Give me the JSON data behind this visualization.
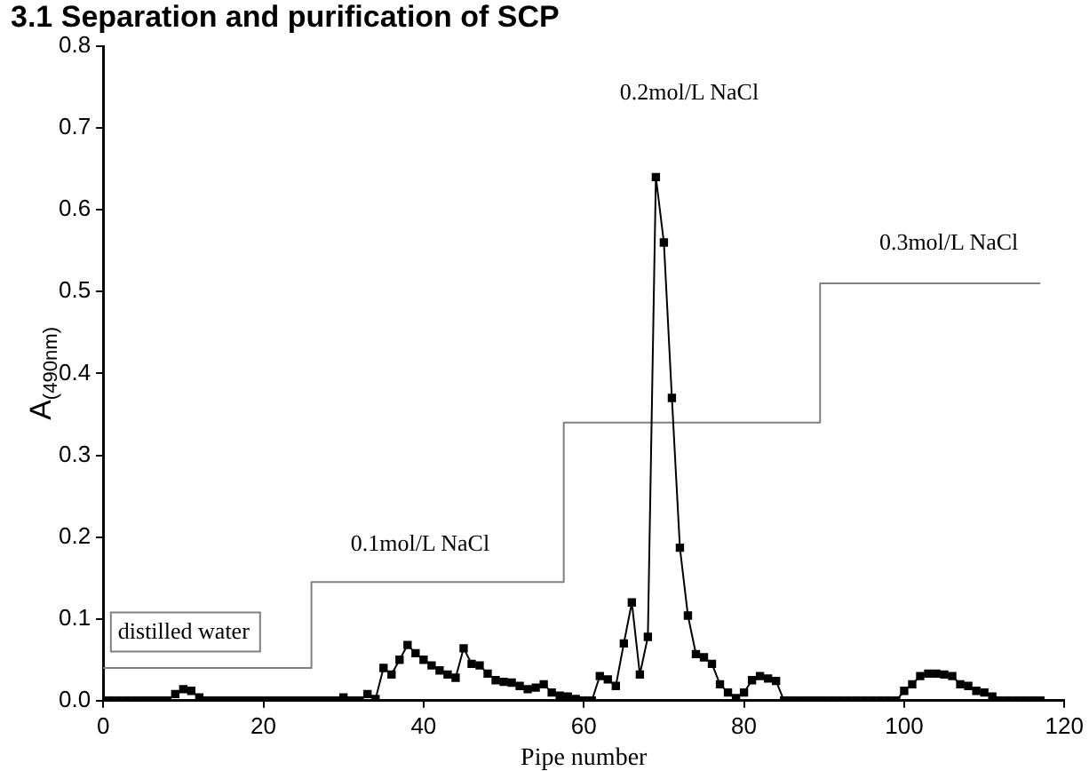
{
  "chart_data": {
    "type": "line",
    "title": "3.1 Separation and purification of SCP",
    "xlabel": "Pipe number",
    "ylabel": "A$_{(490nm)}$",
    "xlim": [
      0,
      120
    ],
    "xticks": [
      0,
      20,
      40,
      60,
      80,
      100,
      120
    ],
    "ylim": [
      0,
      0.8
    ],
    "yticks": [
      {
        "value": 0,
        "label": "0.0"
      },
      0.1,
      0.2,
      0.3,
      0.4,
      0.5,
      0.6,
      0.7,
      0.8
    ],
    "grid": false,
    "legend": false,
    "marker": "square",
    "line_style": "solid",
    "series": [
      {
        "color": "#000000",
        "x": [
          0,
          1,
          2,
          3,
          4,
          5,
          6,
          7,
          8,
          9,
          10,
          11,
          12,
          13,
          14,
          15,
          16,
          17,
          18,
          19,
          20,
          21,
          22,
          23,
          24,
          25,
          26,
          27,
          28,
          29,
          30,
          31,
          32,
          33,
          34,
          35,
          36,
          37,
          38,
          39,
          40,
          41,
          42,
          43,
          44,
          45,
          46,
          47,
          48,
          49,
          50,
          51,
          52,
          53,
          54,
          55,
          56,
          57,
          58,
          59,
          60,
          61,
          62,
          63,
          64,
          65,
          66,
          67,
          68,
          69,
          70,
          71,
          72,
          73,
          74,
          75,
          76,
          77,
          78,
          79,
          80,
          81,
          82,
          83,
          84,
          85,
          86,
          87,
          88,
          89,
          90,
          91,
          92,
          93,
          94,
          95,
          96,
          97,
          98,
          99,
          100,
          101,
          102,
          103,
          104,
          105,
          106,
          107,
          108,
          109,
          110,
          111,
          112,
          113,
          114,
          115,
          116,
          117
        ],
        "values": [
          0,
          0,
          0,
          0,
          0,
          0,
          0,
          0,
          0,
          0.008,
          0.014,
          0.012,
          0.004,
          0,
          0,
          0,
          0,
          0,
          0,
          0,
          0,
          0,
          0,
          0,
          0,
          0,
          0,
          0,
          0,
          0,
          0.004,
          0,
          0,
          0.008,
          0.002,
          0.04,
          0.032,
          0.05,
          0.068,
          0.058,
          0.05,
          0.043,
          0.037,
          0.032,
          0.028,
          0.064,
          0.045,
          0.043,
          0.033,
          0.025,
          0.023,
          0.022,
          0.018,
          0.014,
          0.016,
          0.02,
          0.01,
          0.006,
          0.005,
          0.002,
          0,
          0,
          0.03,
          0.026,
          0.018,
          0.07,
          0.12,
          0.032,
          0.078,
          0.64,
          0.56,
          0.37,
          0.187,
          0.104,
          0.057,
          0.053,
          0.045,
          0.02,
          0.01,
          0.003,
          0.01,
          0.025,
          0.03,
          0.027,
          0.024,
          0,
          0,
          0,
          0,
          0,
          0,
          0,
          0,
          0,
          0,
          0,
          0,
          0,
          0,
          0,
          0.012,
          0.02,
          0.03,
          0.033,
          0.033,
          0.032,
          0.03,
          0.02,
          0.018,
          0.012,
          0.01,
          0.005,
          0,
          0,
          0,
          0,
          0,
          0
        ]
      },
      {
        "type": "step",
        "color": "#808080",
        "marker": "none",
        "x": [
          0,
          26,
          57.5,
          89.5,
          117
        ],
        "values": [
          0.04,
          0.145,
          0.34,
          0.51,
          0.51
        ]
      }
    ],
    "annotations": [
      "distilled water",
      "0.1mol/L NaCl",
      "0.2mol/L NaCl",
      "0.3mol/L NaCl"
    ]
  }
}
